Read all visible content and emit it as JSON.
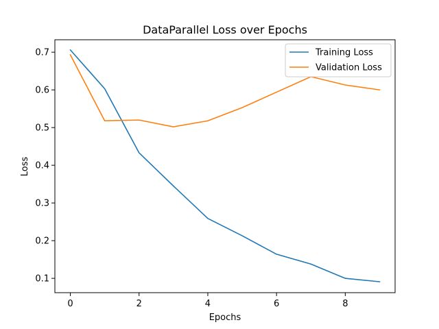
{
  "chart_data": {
    "type": "line",
    "title": "DataParallel Loss over Epochs",
    "xlabel": "Epochs",
    "ylabel": "Loss",
    "x": [
      0,
      1,
      2,
      3,
      4,
      5,
      6,
      7,
      8,
      9
    ],
    "xlim": [
      -0.45,
      9.45
    ],
    "ylim": [
      0.062,
      0.733
    ],
    "xticks": [
      0,
      2,
      4,
      6,
      8
    ],
    "yticks": [
      0.1,
      0.2,
      0.3,
      0.4,
      0.5,
      0.6,
      0.7
    ],
    "ytick_labels": [
      "0.1",
      "0.2",
      "0.3",
      "0.4",
      "0.5",
      "0.6",
      "0.7"
    ],
    "grid": false,
    "legend_position": "top-right",
    "series": [
      {
        "name": "Training Loss",
        "color": "#1f77b4",
        "values": [
          0.706,
          0.603,
          0.433,
          0.345,
          0.259,
          0.213,
          0.164,
          0.138,
          0.1,
          0.091
        ]
      },
      {
        "name": "Validation Loss",
        "color": "#ff7f0e",
        "values": [
          0.693,
          0.518,
          0.52,
          0.502,
          0.518,
          0.553,
          0.594,
          0.635,
          0.613,
          0.6
        ]
      }
    ]
  }
}
